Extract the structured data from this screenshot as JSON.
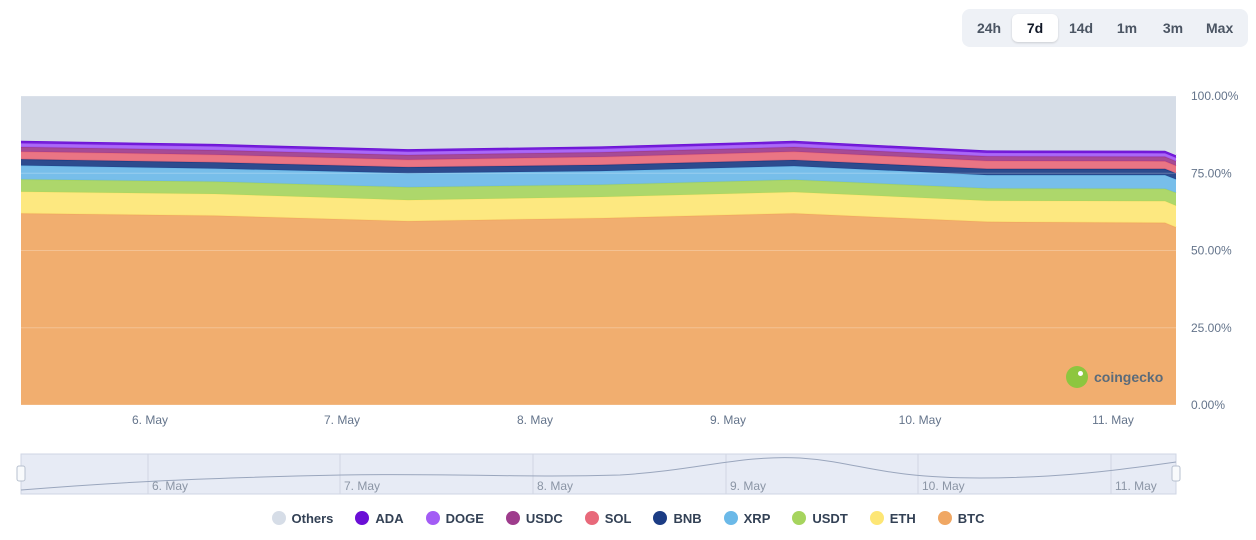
{
  "range_buttons": [
    {
      "label": "24h",
      "active": false
    },
    {
      "label": "7d",
      "active": true
    },
    {
      "label": "14d",
      "active": false
    },
    {
      "label": "1m",
      "active": false
    },
    {
      "label": "3m",
      "active": false
    },
    {
      "label": "Max",
      "active": false
    }
  ],
  "watermark": "coingecko",
  "chart_data": {
    "type": "area",
    "stacked": true,
    "x": [
      "5. May 17:00",
      "6. May 07:00",
      "7. May 09:00",
      "8. May 09:00",
      "9. May 09:00",
      "10. May 09:00",
      "11. May 09:00",
      "11. May 15:00"
    ],
    "x_ticks": [
      "6. May",
      "7. May",
      "8. May",
      "9. May",
      "10. May",
      "11. May"
    ],
    "y_ticks": [
      "100.00%",
      "75.00%",
      "50.00%",
      "25.00%",
      "0.00%"
    ],
    "ylim": [
      0,
      100
    ],
    "grid": true,
    "legend_position": "bottom",
    "series": [
      {
        "name": "BTC",
        "color": "#f0a763",
        "values": [
          62.0,
          61.3,
          59.5,
          60.5,
          62.0,
          59.3,
          59.0,
          57.5
        ]
      },
      {
        "name": "ETH",
        "color": "#fde675",
        "values": [
          7.0,
          7.0,
          6.8,
          6.8,
          6.9,
          6.8,
          7.0,
          7.0
        ]
      },
      {
        "name": "USDT",
        "color": "#a6d45e",
        "values": [
          4.0,
          4.0,
          4.2,
          4.0,
          4.0,
          4.0,
          4.0,
          4.2
        ]
      },
      {
        "name": "XRP",
        "color": "#6bb9e8",
        "values": [
          4.5,
          4.2,
          4.5,
          4.4,
          4.4,
          4.3,
          4.4,
          4.3
        ]
      },
      {
        "name": "BNB",
        "color": "#1b3c84",
        "values": [
          2.0,
          2.0,
          2.0,
          2.0,
          2.0,
          2.0,
          2.0,
          2.0
        ]
      },
      {
        "name": "SOL",
        "color": "#e8697a",
        "values": [
          2.5,
          2.5,
          2.4,
          2.6,
          2.7,
          2.6,
          2.5,
          2.4
        ]
      },
      {
        "name": "USDC",
        "color": "#9e3c8c",
        "values": [
          1.5,
          1.5,
          1.5,
          1.5,
          1.5,
          1.5,
          1.5,
          1.5
        ]
      },
      {
        "name": "DOGE",
        "color": "#a35cf5",
        "values": [
          1.2,
          1.2,
          1.1,
          1.1,
          1.2,
          1.1,
          1.1,
          1.1
        ]
      },
      {
        "name": "ADA",
        "color": "#6a0ed6",
        "values": [
          0.8,
          0.8,
          0.8,
          0.8,
          0.8,
          0.8,
          0.8,
          0.8
        ]
      },
      {
        "name": "Others",
        "color": "#d6dde7",
        "values": [
          14.5,
          15.5,
          17.2,
          16.3,
          14.5,
          17.6,
          17.7,
          19.2
        ]
      }
    ],
    "legend_order": [
      "Others",
      "ADA",
      "DOGE",
      "USDC",
      "SOL",
      "BNB",
      "XRP",
      "USDT",
      "ETH",
      "BTC"
    ],
    "navigator": {
      "x_ticks": [
        "6. May",
        "7. May",
        "8. May",
        "9. May",
        "10. May",
        "11. May"
      ]
    }
  }
}
